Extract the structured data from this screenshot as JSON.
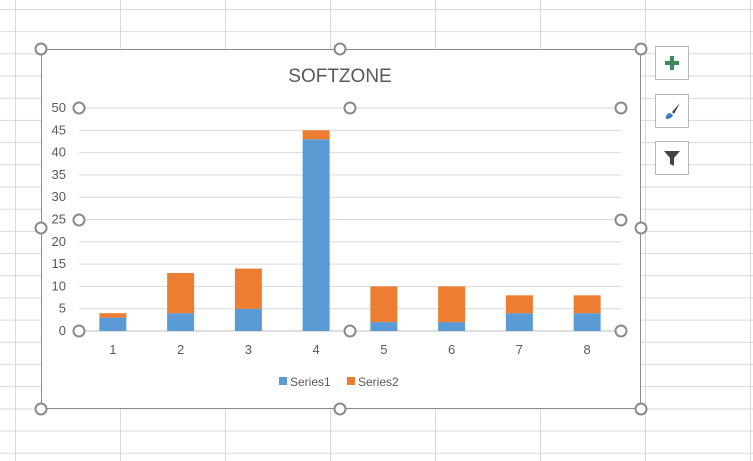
{
  "chart_data": {
    "type": "bar",
    "stacked": true,
    "title": "SOFTZONE",
    "categories": [
      "1",
      "2",
      "3",
      "4",
      "5",
      "6",
      "7",
      "8"
    ],
    "series": [
      {
        "name": "Series1",
        "color": "#5b9bd5",
        "values": [
          3,
          4,
          5,
          43,
          2,
          2,
          4,
          4
        ]
      },
      {
        "name": "Series2",
        "color": "#ed7d31",
        "values": [
          1,
          9,
          9,
          2,
          8,
          8,
          4,
          4
        ]
      }
    ],
    "ylim": [
      0,
      50
    ],
    "yticks": [
      0,
      5,
      10,
      15,
      20,
      25,
      30,
      35,
      40,
      45,
      50
    ],
    "grid": true,
    "legend": "bottom"
  },
  "side_buttons": [
    {
      "name": "chart-elements",
      "icon": "plus-icon"
    },
    {
      "name": "chart-styles",
      "icon": "paintbrush-icon"
    },
    {
      "name": "chart-filters",
      "icon": "filter-icon"
    }
  ]
}
